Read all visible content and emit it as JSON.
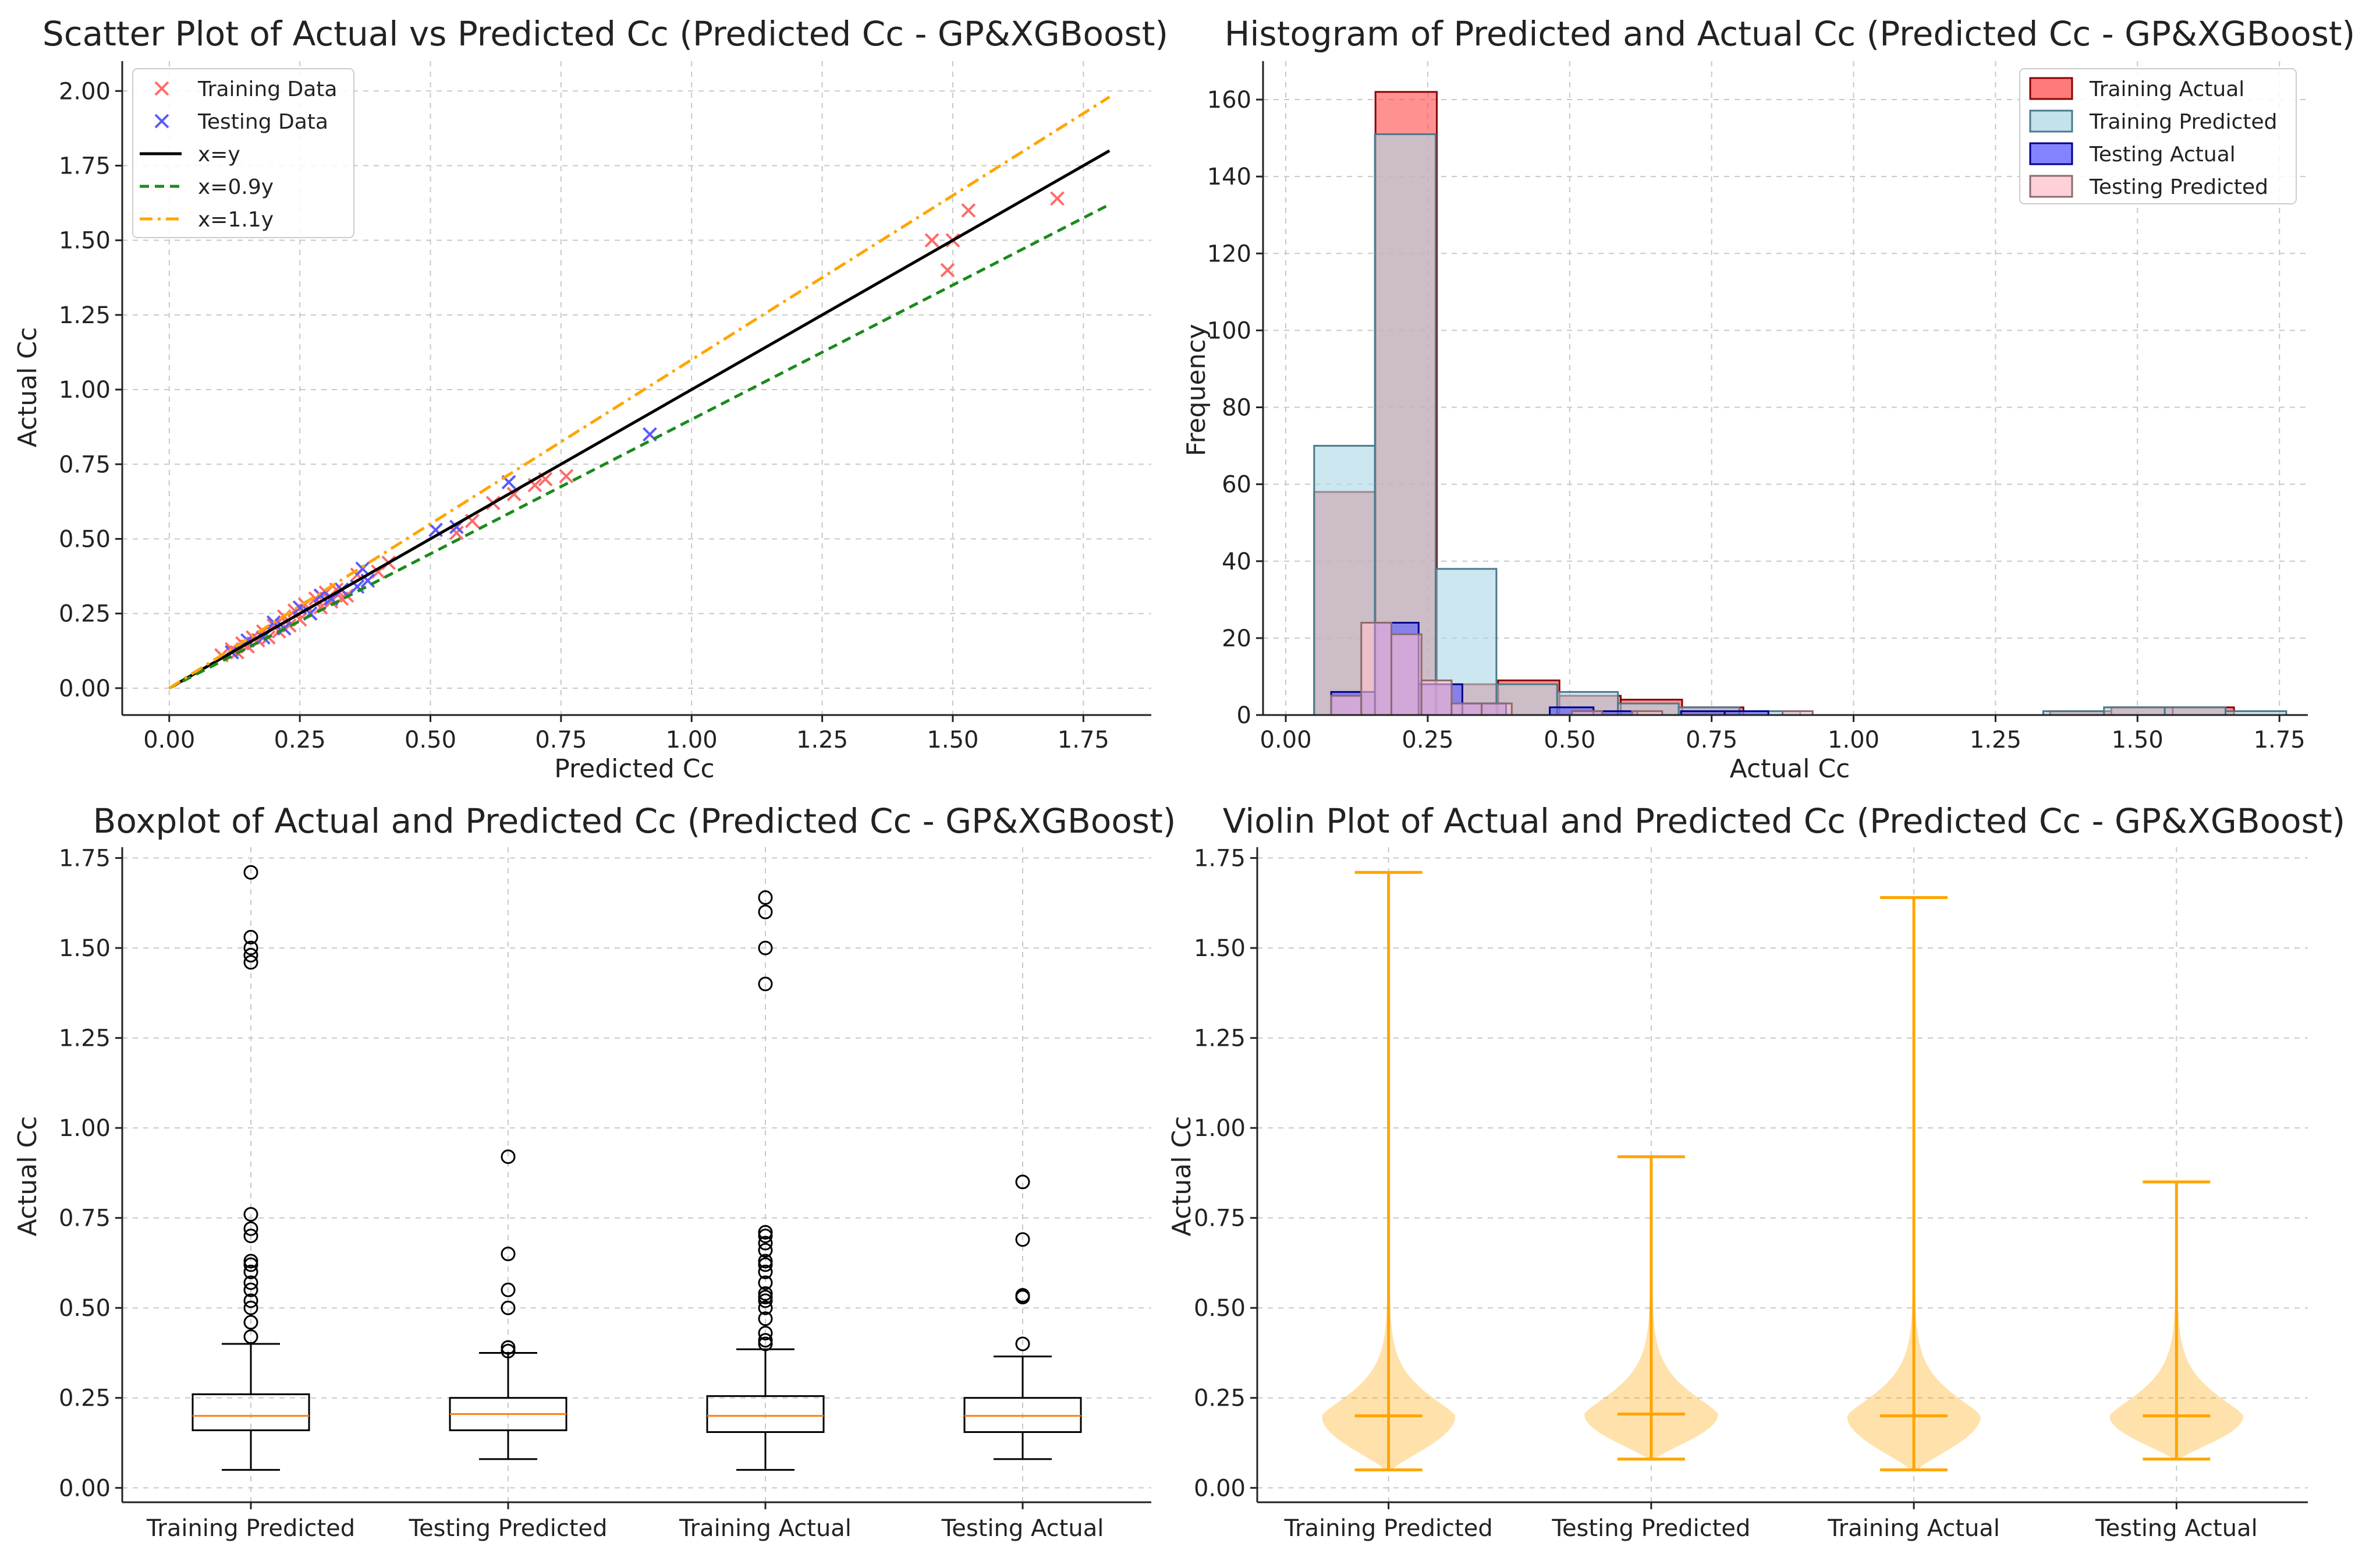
{
  "chart_data": [
    {
      "type": "scatter",
      "title": "Scatter Plot of Actual vs Predicted Cc (Predicted Cc - GP&XGBoost)",
      "xlabel": "Predicted Cc",
      "ylabel": "Actual Cc",
      "xlim": [
        -0.09,
        1.88
      ],
      "ylim": [
        -0.09,
        2.1
      ],
      "xticks": [
        "0.00",
        "0.25",
        "0.50",
        "0.75",
        "1.00",
        "1.25",
        "1.50",
        "1.75"
      ],
      "yticks": [
        "0.00",
        "0.25",
        "0.50",
        "0.75",
        "1.00",
        "1.25",
        "1.50",
        "1.75",
        "2.00"
      ],
      "grid": true,
      "legend": "top-left",
      "series": [
        {
          "name": "Training Data",
          "marker": "x",
          "color": "#ff6b6b",
          "points": [
            [
              0.1,
              0.11
            ],
            [
              0.12,
              0.13
            ],
            [
              0.13,
              0.12
            ],
            [
              0.14,
              0.15
            ],
            [
              0.15,
              0.14
            ],
            [
              0.16,
              0.17
            ],
            [
              0.17,
              0.16
            ],
            [
              0.18,
              0.19
            ],
            [
              0.19,
              0.17
            ],
            [
              0.2,
              0.21
            ],
            [
              0.21,
              0.19
            ],
            [
              0.22,
              0.24
            ],
            [
              0.23,
              0.21
            ],
            [
              0.24,
              0.26
            ],
            [
              0.25,
              0.23
            ],
            [
              0.26,
              0.28
            ],
            [
              0.27,
              0.25
            ],
            [
              0.28,
              0.3
            ],
            [
              0.29,
              0.27
            ],
            [
              0.3,
              0.32
            ],
            [
              0.31,
              0.29
            ],
            [
              0.32,
              0.33
            ],
            [
              0.33,
              0.3
            ],
            [
              0.34,
              0.31
            ],
            [
              0.36,
              0.38
            ],
            [
              0.38,
              0.36
            ],
            [
              0.4,
              0.39
            ],
            [
              0.42,
              0.42
            ],
            [
              0.55,
              0.52
            ],
            [
              0.58,
              0.56
            ],
            [
              0.62,
              0.62
            ],
            [
              0.66,
              0.65
            ],
            [
              0.7,
              0.68
            ],
            [
              0.72,
              0.7
            ],
            [
              0.76,
              0.71
            ],
            [
              1.46,
              1.5
            ],
            [
              1.49,
              1.4
            ],
            [
              1.5,
              1.5
            ],
            [
              1.53,
              1.6
            ],
            [
              1.7,
              1.64
            ]
          ]
        },
        {
          "name": "Testing Data",
          "marker": "x",
          "color": "#5a5aff",
          "points": [
            [
              0.12,
              0.12
            ],
            [
              0.15,
              0.16
            ],
            [
              0.18,
              0.17
            ],
            [
              0.2,
              0.22
            ],
            [
              0.22,
              0.2
            ],
            [
              0.25,
              0.27
            ],
            [
              0.27,
              0.25
            ],
            [
              0.29,
              0.31
            ],
            [
              0.31,
              0.3
            ],
            [
              0.33,
              0.33
            ],
            [
              0.36,
              0.34
            ],
            [
              0.37,
              0.4
            ],
            [
              0.38,
              0.36
            ],
            [
              0.51,
              0.53
            ],
            [
              0.55,
              0.54
            ],
            [
              0.65,
              0.69
            ],
            [
              0.92,
              0.85
            ]
          ]
        },
        {
          "name": "x=y",
          "style": "solid",
          "color": "#000000",
          "slope": 1.0,
          "x": [
            0,
            1.8
          ]
        },
        {
          "name": "x=0.9y",
          "style": "dashed",
          "color": "#1a8a1a",
          "slope": 0.9,
          "x": [
            0,
            1.8
          ]
        },
        {
          "name": "x=1.1y",
          "style": "dashdot",
          "color": "#ffa500",
          "slope": 1.1,
          "x": [
            0,
            1.8
          ]
        }
      ]
    },
    {
      "type": "bar",
      "subtype": "histogram",
      "title": "Histogram of Predicted and Actual Cc (Predicted Cc - GP&XGBoost)",
      "xlabel": "Actual Cc",
      "ylabel": "Frequency",
      "xlim": [
        -0.04,
        1.8
      ],
      "ylim": [
        0,
        170
      ],
      "xticks": [
        "0.00",
        "0.25",
        "0.50",
        "0.75",
        "1.00",
        "1.25",
        "1.50",
        "1.75"
      ],
      "yticks": [
        "0",
        "20",
        "40",
        "60",
        "80",
        "100",
        "120",
        "140",
        "160"
      ],
      "grid": true,
      "legend": "top-right",
      "series": [
        {
          "name": "Training Actual",
          "color": "#ff4d4d",
          "edge": "#8b0000",
          "bins": [
            [
              0.05,
              0.158,
              58
            ],
            [
              0.158,
              0.266,
              162
            ],
            [
              0.266,
              0.374,
              8
            ],
            [
              0.374,
              0.482,
              9
            ],
            [
              0.482,
              0.59,
              5
            ],
            [
              0.59,
              0.698,
              4
            ],
            [
              0.698,
              0.806,
              2
            ],
            [
              1.346,
              1.454,
              1
            ],
            [
              1.454,
              1.562,
              2
            ],
            [
              1.562,
              1.67,
              2
            ]
          ]
        },
        {
          "name": "Training Predicted",
          "color": "#add8e6",
          "edge": "#4a7a8c",
          "bins": [
            [
              0.05,
              0.157,
              70
            ],
            [
              0.157,
              0.264,
              151
            ],
            [
              0.264,
              0.371,
              38
            ],
            [
              0.371,
              0.478,
              8
            ],
            [
              0.478,
              0.585,
              6
            ],
            [
              0.585,
              0.692,
              3
            ],
            [
              0.692,
              0.799,
              2
            ],
            [
              0.799,
              0.906,
              1
            ],
            [
              1.334,
              1.441,
              1
            ],
            [
              1.441,
              1.548,
              2
            ],
            [
              1.548,
              1.655,
              2
            ],
            [
              1.655,
              1.762,
              1
            ]
          ]
        },
        {
          "name": "Testing Actual",
          "color": "#5a5aff",
          "edge": "#00008b",
          "bins": [
            [
              0.08,
              0.157,
              6
            ],
            [
              0.157,
              0.234,
              24
            ],
            [
              0.234,
              0.311,
              8
            ],
            [
              0.311,
              0.388,
              3
            ],
            [
              0.465,
              0.542,
              2
            ],
            [
              0.542,
              0.619,
              1
            ],
            [
              0.696,
              0.773,
              1
            ],
            [
              0.773,
              0.85,
              1
            ]
          ]
        },
        {
          "name": "Testing Predicted",
          "color": "#ffc0cb",
          "edge": "#8b6a70",
          "bins": [
            [
              0.08,
              0.133,
              5
            ],
            [
              0.133,
              0.186,
              24
            ],
            [
              0.186,
              0.239,
              21
            ],
            [
              0.239,
              0.292,
              9
            ],
            [
              0.292,
              0.345,
              3
            ],
            [
              0.345,
              0.398,
              3
            ],
            [
              0.504,
              0.557,
              1
            ],
            [
              0.61,
              0.663,
              1
            ],
            [
              0.875,
              0.928,
              1
            ]
          ]
        }
      ],
      "draw_order": [
        "Training Actual",
        "Training Predicted",
        "Testing Actual",
        "Testing Predicted"
      ]
    },
    {
      "type": "boxplot",
      "title": "Boxplot of Actual and Predicted Cc (Predicted Cc - GP&XGBoost)",
      "xlabel": "",
      "ylabel": "Actual Cc",
      "ylim": [
        -0.04,
        1.78
      ],
      "yticks": [
        "0.00",
        "0.25",
        "0.50",
        "0.75",
        "1.00",
        "1.25",
        "1.50",
        "1.75"
      ],
      "categories": [
        "Training Predicted",
        "Testing Predicted",
        "Training Actual",
        "Testing Actual"
      ],
      "grid": true,
      "boxes": [
        {
          "whislo": 0.05,
          "q1": 0.16,
          "med": 0.2,
          "q3": 0.26,
          "whishi": 0.4,
          "fliers": [
            0.42,
            0.46,
            0.5,
            0.52,
            0.55,
            0.57,
            0.6,
            0.62,
            0.63,
            0.7,
            0.72,
            0.76,
            1.46,
            1.48,
            1.5,
            1.53,
            1.71
          ]
        },
        {
          "whislo": 0.08,
          "q1": 0.16,
          "med": 0.205,
          "q3": 0.25,
          "whishi": 0.375,
          "fliers": [
            0.38,
            0.39,
            0.5,
            0.55,
            0.65,
            0.92
          ]
        },
        {
          "whislo": 0.05,
          "q1": 0.155,
          "med": 0.2,
          "q3": 0.255,
          "whishi": 0.385,
          "fliers": [
            0.4,
            0.41,
            0.43,
            0.47,
            0.5,
            0.52,
            0.53,
            0.54,
            0.57,
            0.6,
            0.62,
            0.63,
            0.66,
            0.68,
            0.7,
            0.71,
            1.4,
            1.5,
            1.6,
            1.64
          ]
        },
        {
          "whislo": 0.08,
          "q1": 0.155,
          "med": 0.2,
          "q3": 0.25,
          "whishi": 0.365,
          "fliers": [
            0.4,
            0.53,
            0.535,
            0.69,
            0.85
          ]
        }
      ]
    },
    {
      "type": "violin",
      "title": "Violin Plot of Actual and Predicted Cc (Predicted Cc - GP&XGBoost)",
      "xlabel": "",
      "ylabel": "Actual Cc",
      "ylim": [
        -0.04,
        1.78
      ],
      "yticks": [
        "0.00",
        "0.25",
        "0.50",
        "0.75",
        "1.00",
        "1.25",
        "1.50",
        "1.75"
      ],
      "categories": [
        "Training Predicted",
        "Testing Predicted",
        "Training Actual",
        "Testing Actual"
      ],
      "grid": true,
      "color": "#ffa500",
      "violins": [
        {
          "min": 0.05,
          "median": 0.2,
          "max": 1.71
        },
        {
          "min": 0.08,
          "median": 0.205,
          "max": 0.92
        },
        {
          "min": 0.05,
          "median": 0.2,
          "max": 1.64
        },
        {
          "min": 0.08,
          "median": 0.2,
          "max": 0.85
        }
      ]
    }
  ]
}
